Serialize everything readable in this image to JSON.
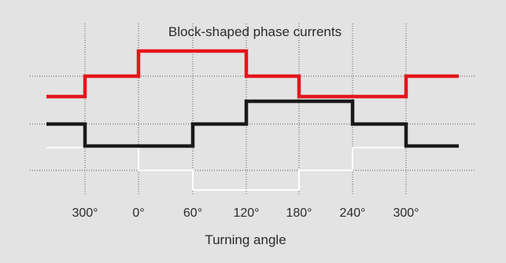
{
  "title": "Block-shaped phase currents",
  "xlabel": "Turning angle",
  "colors": {
    "background": "#e3e3e3",
    "grid": "#555555",
    "phase_red": "#e3161b",
    "phase_black": "#1a1a1a",
    "phase_white": "#ffffff"
  },
  "chart_data": {
    "type": "line",
    "title": "Block-shaped phase currents",
    "xlabel": "Turning angle",
    "ylabel": "",
    "x_ticks": [
      "300°",
      "0°",
      "60°",
      "120°",
      "180°",
      "240°",
      "300°"
    ],
    "grid": "vertical and horizontal dotted",
    "series": [
      {
        "color": "#e3161b",
        "segments": [
          {
            "from": "start",
            "to": "300°",
            "level": 0
          },
          {
            "from": "300°",
            "to": "0°",
            "level": 1
          },
          {
            "from": "0°",
            "to": "120°",
            "level": 2
          },
          {
            "from": "120°",
            "to": "180°",
            "level": 1
          },
          {
            "from": "180°",
            "to": "300°",
            "level": 0
          },
          {
            "from": "300°",
            "to": "end",
            "level": 1
          }
        ]
      },
      {
        "color": "#1a1a1a",
        "segments": [
          {
            "from": "start",
            "to": "300°",
            "level": 1
          },
          {
            "from": "300°",
            "to": "60°",
            "level": 0
          },
          {
            "from": "60°",
            "to": "120°",
            "level": 1
          },
          {
            "from": "120°",
            "to": "240°",
            "level": 2
          },
          {
            "from": "240°",
            "to": "300°",
            "level": 1
          },
          {
            "from": "300°",
            "to": "end",
            "level": 0
          }
        ]
      },
      {
        "color": "#ffffff",
        "segments": [
          {
            "from": "start",
            "to": "0°",
            "level": 2
          },
          {
            "from": "0°",
            "to": "60°",
            "level": 1
          },
          {
            "from": "60°",
            "to": "180°",
            "level": 0
          },
          {
            "from": "180°",
            "to": "240°",
            "level": 1
          },
          {
            "from": "240°",
            "to": "end",
            "level": 2
          }
        ]
      }
    ]
  }
}
